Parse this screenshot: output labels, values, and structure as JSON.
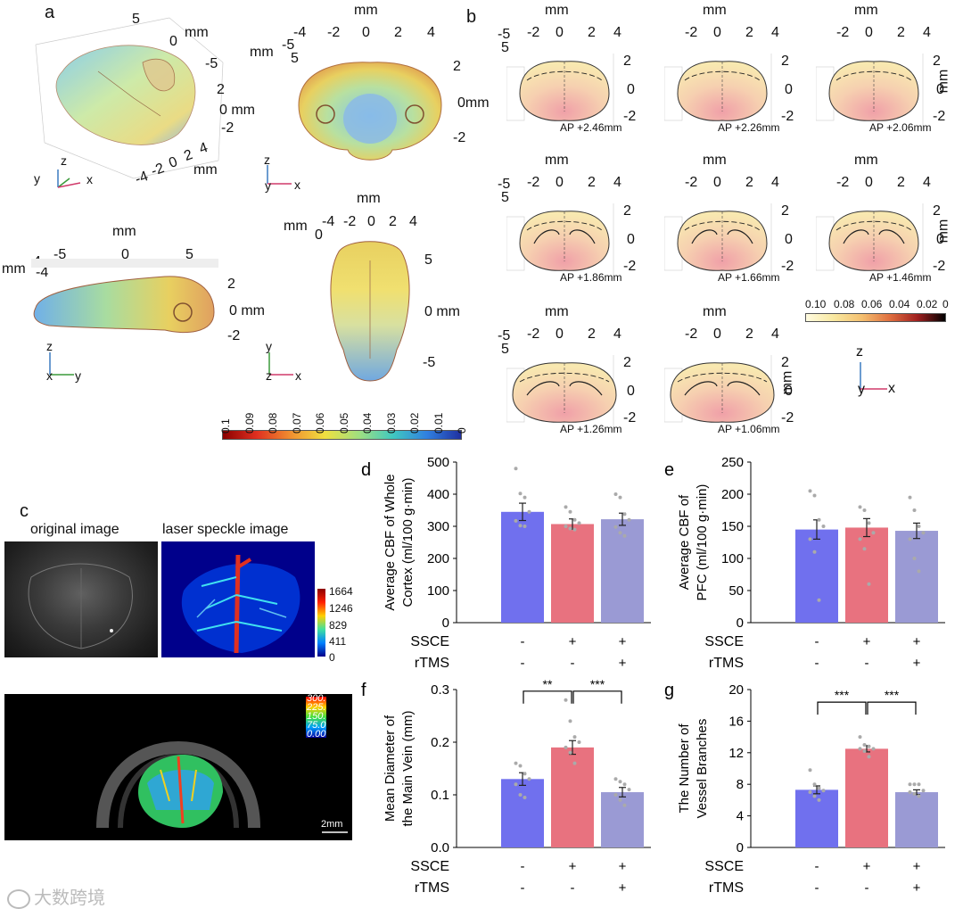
{
  "panels": {
    "a": {
      "label": "a",
      "unit": "mm",
      "view1": {
        "ticks_x": [
          "-4",
          "-2",
          "0",
          "2",
          "4"
        ],
        "ticks_y": [
          "5",
          "0",
          "-5"
        ],
        "ticks_z": [
          "2",
          "0",
          "-2"
        ],
        "z_unit": "0 mm"
      },
      "view2": {
        "ticks_top": [
          "-4",
          "-2",
          "0",
          "2",
          "4"
        ],
        "side": [
          "5",
          "-5"
        ],
        "right": [
          "2",
          "0mm",
          "-2"
        ]
      },
      "view3": {
        "ticks_top": [
          "-5",
          "0",
          "5"
        ],
        "left": [
          "4",
          "-4"
        ],
        "right": [
          "2",
          "0 mm",
          "-2"
        ]
      },
      "view4": {
        "ticks_top": [
          "-4",
          "-2",
          "0",
          "2",
          "4"
        ],
        "left": [
          "0"
        ],
        "right": [
          "5",
          "0 mm",
          "-5"
        ]
      },
      "colorbar": {
        "ticks": [
          "0.1",
          "0.09",
          "0.08",
          "0.07",
          "0.06",
          "0.05",
          "0.04",
          "0.03",
          "0.02",
          "0.01",
          "0"
        ]
      },
      "axes": {
        "x": "x",
        "y": "y",
        "z": "z"
      }
    },
    "b": {
      "label": "b",
      "unit": "mm",
      "ticks_top": [
        "-2",
        "0",
        "2",
        "4"
      ],
      "ticks_right": [
        "2",
        "0",
        "-2"
      ],
      "left_ticks": [
        "-5",
        "5"
      ],
      "sections": [
        {
          "label": "AP +2.46mm"
        },
        {
          "label": "AP +2.26mm"
        },
        {
          "label": "AP +2.06mm"
        },
        {
          "label": "AP +1.86mm"
        },
        {
          "label": "AP +1.66mm"
        },
        {
          "label": "AP +1.46mm"
        },
        {
          "label": "AP +1.26mm"
        },
        {
          "label": "AP +1.06mm"
        }
      ],
      "colorbar": {
        "ticks": [
          "0.10",
          "0.08",
          "0.06",
          "0.04",
          "0.02",
          "0"
        ]
      },
      "axes": {
        "z": "z",
        "y": "y",
        "x": "x"
      }
    },
    "c": {
      "label": "c",
      "original_title": "original image",
      "speckle_title": "laser speckle image",
      "speckle_colorbar": [
        "1664",
        "1246",
        "829",
        "411",
        "0"
      ],
      "bottom_colorbar": [
        "300.",
        "225.",
        "150.",
        "75.0",
        "0.00"
      ],
      "scale_bar": "2mm"
    }
  },
  "chart_data": [
    {
      "id": "d",
      "type": "bar",
      "ylabel_line1": "Average CBF of Whole",
      "ylabel_line2": "Cortex (ml/100 g·min)",
      "categories": [
        "SSCE-/rTMS-",
        "SSCE+/rTMS-",
        "SSCE+/rTMS+"
      ],
      "values": [
        345,
        307,
        322
      ],
      "errors": [
        27,
        16,
        19
      ],
      "ylim": [
        0,
        500
      ],
      "yticks": [
        "0",
        "100",
        "200",
        "300",
        "400",
        "500"
      ],
      "points": [
        [
          480,
          402,
          390,
          345,
          317,
          302,
          300
        ],
        [
          360,
          345,
          320,
          310,
          300,
          293,
          290
        ],
        [
          400,
          390,
          338,
          320,
          298,
          280,
          270
        ]
      ],
      "sig": []
    },
    {
      "id": "e",
      "type": "bar",
      "ylabel_line1": "Average CBF of",
      "ylabel_line2": "PFC (ml/100 g·min)",
      "categories": [
        "SSCE-/rTMS-",
        "SSCE+/rTMS-",
        "SSCE+/rTMS+"
      ],
      "values": [
        145,
        148,
        143
      ],
      "errors": [
        15,
        14,
        12
      ],
      "ylim": [
        0,
        250
      ],
      "yticks": [
        "0",
        "50",
        "100",
        "150",
        "200",
        "250"
      ],
      "points": [
        [
          205,
          198,
          160,
          150,
          130,
          110,
          35
        ],
        [
          180,
          175,
          155,
          140,
          130,
          115,
          60
        ],
        [
          195,
          175,
          150,
          140,
          130,
          100,
          80
        ]
      ],
      "sig": []
    },
    {
      "id": "f",
      "type": "bar",
      "ylabel_line1": "Mean Diameter of",
      "ylabel_line2": "the Main Vein (mm)",
      "categories": [
        "SSCE-/rTMS-",
        "SSCE+/rTMS-",
        "SSCE+/rTMS+"
      ],
      "values": [
        0.13,
        0.19,
        0.105
      ],
      "errors": [
        0.012,
        0.013,
        0.009
      ],
      "ylim": [
        0,
        0.3
      ],
      "yticks": [
        "0.0",
        "0.1",
        "0.2",
        "0.3"
      ],
      "points": [
        [
          0.16,
          0.155,
          0.14,
          0.13,
          0.12,
          0.1,
          0.095
        ],
        [
          0.28,
          0.24,
          0.21,
          0.2,
          0.19,
          0.18,
          0.16
        ],
        [
          0.13,
          0.125,
          0.12,
          0.11,
          0.1,
          0.09,
          0.08
        ]
      ],
      "sig": [
        {
          "a": 0,
          "b": 1,
          "label": "**"
        },
        {
          "a": 1,
          "b": 2,
          "label": "***"
        }
      ]
    },
    {
      "id": "g",
      "type": "bar",
      "ylabel_line1": "The Number of",
      "ylabel_line2": "Vessel Branches",
      "categories": [
        "SSCE-/rTMS-",
        "SSCE+/rTMS-",
        "SSCE+/rTMS+"
      ],
      "values": [
        7.3,
        12.5,
        7.0
      ],
      "errors": [
        0.5,
        0.4,
        0.3
      ],
      "ylim": [
        0,
        20
      ],
      "yticks": [
        "0",
        "4",
        "8",
        "12",
        "16",
        "20"
      ],
      "points": [
        [
          9.8,
          8,
          7.5,
          7.2,
          7,
          6.5,
          6
        ],
        [
          14,
          13,
          12.8,
          12.5,
          12.5,
          12.2,
          11.5
        ],
        [
          8,
          8,
          8,
          7.2,
          7,
          6.8,
          6.5
        ]
      ],
      "sig": [
        {
          "a": 0,
          "b": 1,
          "label": "***"
        },
        {
          "a": 1,
          "b": 2,
          "label": "***"
        }
      ]
    }
  ],
  "bar_groups": {
    "row1_label": "SSCE",
    "row2_label": "rTMS",
    "row1_marks": [
      "-",
      "+",
      "+"
    ],
    "row2_marks": [
      "-",
      "-",
      "+"
    ]
  },
  "colors": {
    "blue": "#7070EE",
    "red": "#E8727F",
    "lavender": "#9A9AD4"
  },
  "watermark": "大数跨境"
}
